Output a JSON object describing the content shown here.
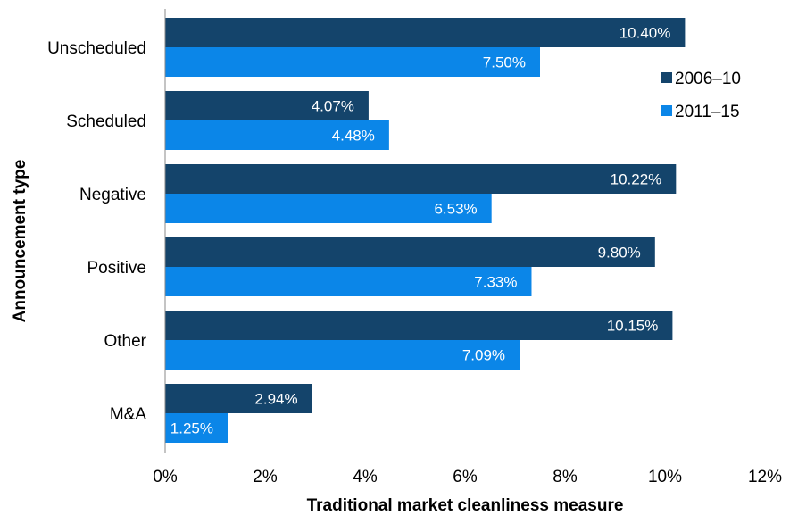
{
  "chart_data": {
    "type": "bar",
    "orientation": "horizontal",
    "categories": [
      "Unscheduled",
      "Scheduled",
      "Negative",
      "Positive",
      "Other",
      "M&A"
    ],
    "series": [
      {
        "name": "2006–10",
        "color": "#14446b",
        "values": [
          10.4,
          4.07,
          10.22,
          9.8,
          10.15,
          2.94
        ],
        "labels": [
          "10.40%",
          "4.07%",
          "10.22%",
          "9.80%",
          "10.15%",
          "2.94%"
        ]
      },
      {
        "name": "2011–15",
        "color": "#0b86e8",
        "values": [
          7.5,
          4.48,
          6.53,
          7.33,
          7.09,
          1.25
        ],
        "labels": [
          "7.50%",
          "4.48%",
          "6.53%",
          "7.33%",
          "7.09%",
          "1.25%"
        ]
      }
    ],
    "xlabel": "Traditional market cleanliness measure",
    "ylabel": "Announcement type",
    "xlim": [
      0,
      12
    ],
    "xticks": [
      0,
      2,
      4,
      6,
      8,
      10,
      12
    ],
    "xtick_labels": [
      "0%",
      "2%",
      "4%",
      "6%",
      "8%",
      "10%",
      "12%"
    ],
    "legend_position": "right",
    "grid": false
  }
}
